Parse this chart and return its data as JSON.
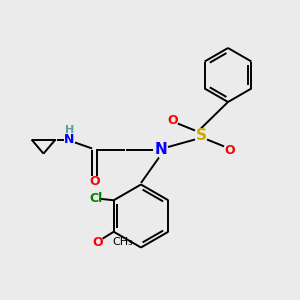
{
  "background_color": "#ebebeb",
  "bond_color": "#000000",
  "N_color": "#0000ff",
  "O_color": "#ff0000",
  "S_color": "#ccaa00",
  "Cl_color": "#008000",
  "H_color": "#5f9ea0",
  "figsize": [
    3.0,
    3.0
  ],
  "dpi": 100,
  "xlim": [
    0,
    10
  ],
  "ylim": [
    0,
    10
  ]
}
